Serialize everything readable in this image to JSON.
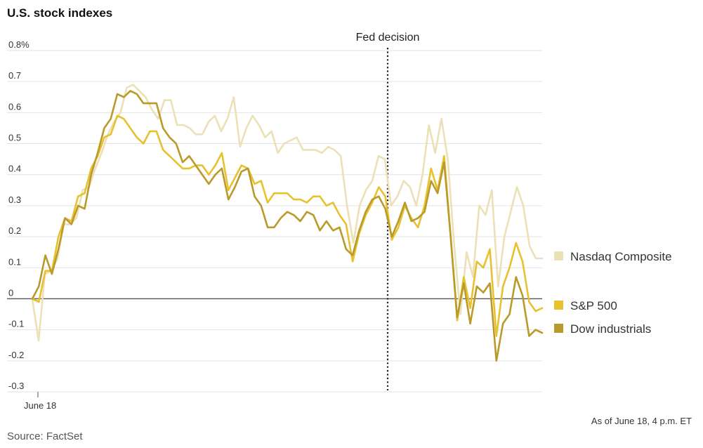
{
  "title": "U.S. stock indexes",
  "source": "Source: FactSet",
  "as_of": "As of June 18, 4 p.m. ET",
  "chart_data": {
    "type": "line",
    "title": "U.S. stock indexes",
    "x_tick_label": "June 18",
    "y_ticks": [
      "0.8%",
      "0.7",
      "0.6",
      "0.5",
      "0.4",
      "0.3",
      "0.2",
      "0.1",
      "0",
      "-0.1",
      "-0.2",
      "-0.3"
    ],
    "y_tick_values": [
      0.8,
      0.7,
      0.6,
      0.5,
      0.4,
      0.3,
      0.2,
      0.1,
      0,
      -0.1,
      -0.2,
      -0.3
    ],
    "ylim": [
      -0.3,
      0.8
    ],
    "grid": true,
    "legend_position": "right",
    "annotation": {
      "label": "Fed decision",
      "x_index": 82
    },
    "series": [
      {
        "name": "Nasdaq Composite",
        "color": "#ece0b6",
        "values": [
          0.0,
          -0.135,
          0.08,
          0.09,
          0.13,
          0.24,
          0.24,
          0.26,
          0.35,
          0.36,
          0.42,
          0.47,
          0.53,
          0.57,
          0.6,
          0.68,
          0.69,
          0.67,
          0.65,
          0.61,
          0.58,
          0.64,
          0.64,
          0.56,
          0.56,
          0.55,
          0.53,
          0.53,
          0.57,
          0.59,
          0.54,
          0.58,
          0.65,
          0.49,
          0.55,
          0.59,
          0.56,
          0.52,
          0.54,
          0.47,
          0.5,
          0.51,
          0.52,
          0.48,
          0.48,
          0.48,
          0.47,
          0.49,
          0.48,
          0.46,
          0.3,
          0.18,
          0.3,
          0.35,
          0.38,
          0.46,
          0.45,
          0.3,
          0.33,
          0.38,
          0.36,
          0.3,
          0.4,
          0.56,
          0.47,
          0.58,
          0.45,
          0.18,
          -0.05,
          0.15,
          0.07,
          0.3,
          0.27,
          0.35,
          0.04,
          0.2,
          0.28,
          0.36,
          0.3,
          0.17,
          0.13,
          0.13
        ],
        "values_note": "approximate; see x indices"
      },
      {
        "name": "S&P 500",
        "color": "#e7c12e",
        "values": [
          0.0,
          -0.01,
          0.09,
          0.09,
          0.2,
          0.26,
          0.25,
          0.33,
          0.34,
          0.42,
          0.46,
          0.52,
          0.53,
          0.59,
          0.58,
          0.55,
          0.52,
          0.5,
          0.54,
          0.54,
          0.48,
          0.46,
          0.44,
          0.42,
          0.42,
          0.43,
          0.43,
          0.4,
          0.43,
          0.47,
          0.35,
          0.39,
          0.43,
          0.42,
          0.37,
          0.38,
          0.31,
          0.34,
          0.34,
          0.34,
          0.32,
          0.32,
          0.31,
          0.33,
          0.33,
          0.3,
          0.31,
          0.27,
          0.24,
          0.12,
          0.21,
          0.27,
          0.31,
          0.36,
          0.33,
          0.19,
          0.23,
          0.3,
          0.26,
          0.23,
          0.3,
          0.42,
          0.35,
          0.46,
          0.2,
          -0.07,
          0.07,
          -0.03,
          0.12,
          0.1,
          0.16,
          -0.12,
          0.04,
          0.1,
          0.18,
          0.12,
          -0.01,
          -0.04,
          -0.03
        ],
        "values_note": "approximate"
      },
      {
        "name": "Dow industrials",
        "color": "#b99a2a",
        "values": [
          0.0,
          0.04,
          0.14,
          0.08,
          0.16,
          0.26,
          0.24,
          0.3,
          0.29,
          0.4,
          0.47,
          0.55,
          0.58,
          0.66,
          0.65,
          0.67,
          0.66,
          0.63,
          0.63,
          0.63,
          0.55,
          0.52,
          0.5,
          0.44,
          0.46,
          0.43,
          0.4,
          0.37,
          0.4,
          0.42,
          0.32,
          0.36,
          0.41,
          0.42,
          0.33,
          0.3,
          0.23,
          0.23,
          0.26,
          0.28,
          0.27,
          0.25,
          0.28,
          0.27,
          0.22,
          0.25,
          0.22,
          0.23,
          0.16,
          0.14,
          0.22,
          0.28,
          0.32,
          0.33,
          0.29,
          0.2,
          0.25,
          0.31,
          0.25,
          0.26,
          0.28,
          0.38,
          0.34,
          0.44,
          0.2,
          -0.06,
          0.05,
          -0.08,
          0.04,
          0.02,
          0.05,
          -0.2,
          -0.08,
          -0.05,
          0.07,
          0.01,
          -0.12,
          -0.1,
          -0.11
        ],
        "values_note": "approximate"
      }
    ]
  }
}
